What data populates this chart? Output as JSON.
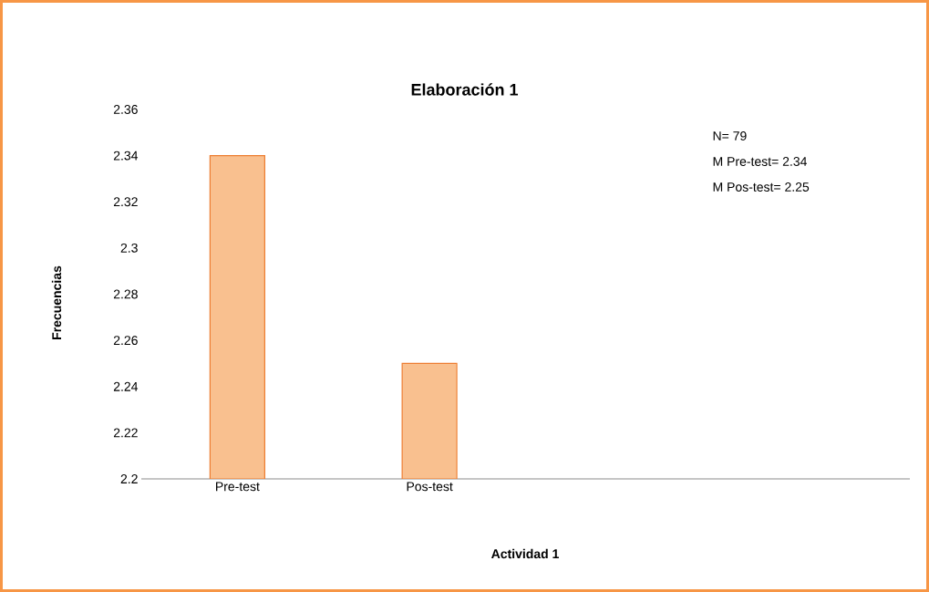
{
  "chart_data": {
    "type": "bar",
    "title": "Elaboración 1",
    "xlabel": "Actividad  1",
    "ylabel": "Frecuencias",
    "categories": [
      "Pre-test",
      "Pos-test",
      null,
      null
    ],
    "values": [
      2.34,
      2.25,
      null,
      null
    ],
    "color": "#f9c08f",
    "ylim": [
      2.2,
      2.36
    ],
    "yticks": [
      2.2,
      2.22,
      2.24,
      2.26,
      2.28,
      2.3,
      2.32,
      2.34,
      2.36
    ],
    "annotations": [
      "N= 79",
      "M Pre-test= 2.34",
      "M Pos-test= 2.25"
    ]
  }
}
